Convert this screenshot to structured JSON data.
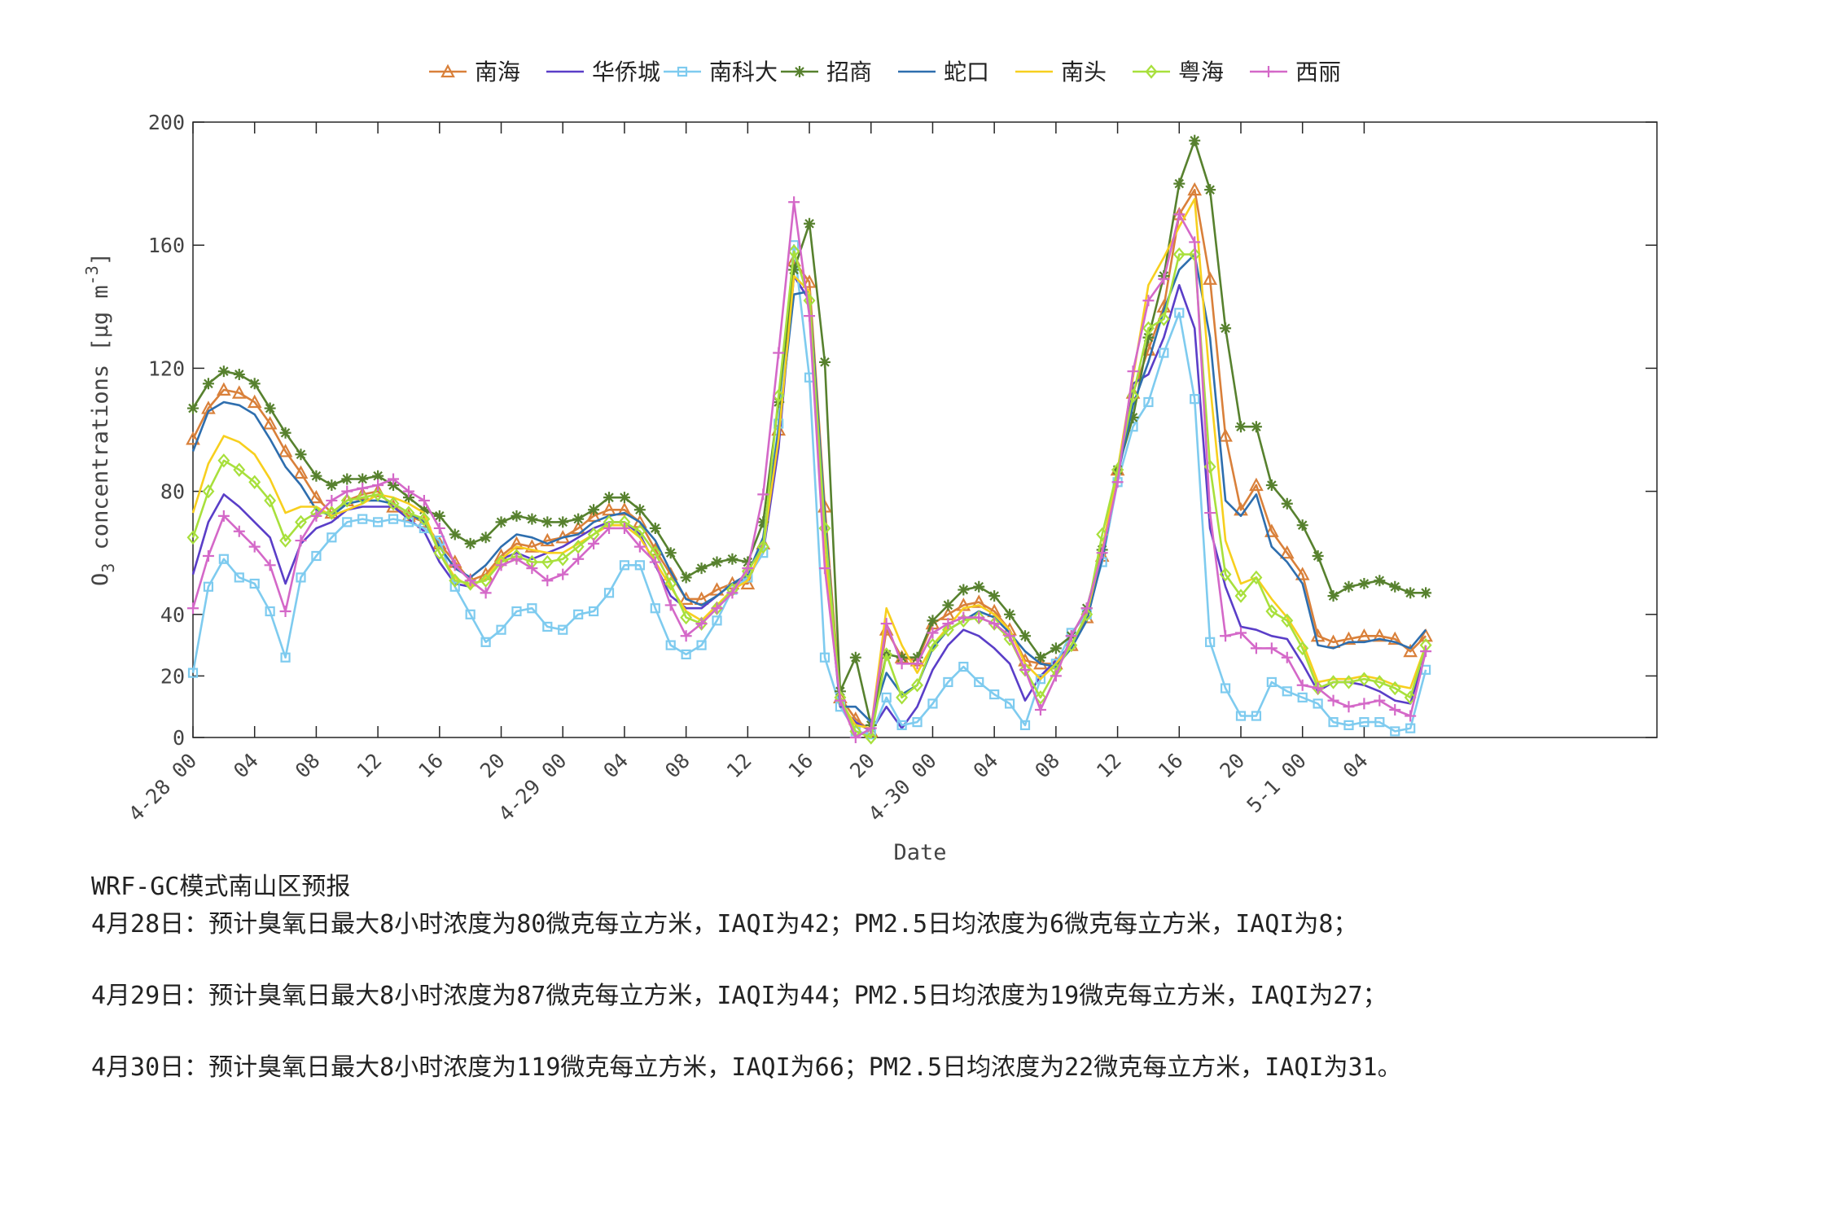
{
  "chart_data": {
    "type": "line",
    "title": "",
    "xlabel": "Date",
    "ylabel": "O3 concentrations [μg m-3]",
    "ylim": [
      0,
      200
    ],
    "yticks": [
      0,
      20,
      40,
      80,
      120,
      160,
      200
    ],
    "x_unit": "hours since 4-28 00",
    "xlim": [
      0,
      95
    ],
    "xticks": [
      {
        "x": 0,
        "label": "4-28 00"
      },
      {
        "x": 4,
        "label": "04"
      },
      {
        "x": 8,
        "label": "08"
      },
      {
        "x": 12,
        "label": "12"
      },
      {
        "x": 16,
        "label": "16"
      },
      {
        "x": 20,
        "label": "20"
      },
      {
        "x": 24,
        "label": "4-29 00"
      },
      {
        "x": 28,
        "label": "04"
      },
      {
        "x": 32,
        "label": "08"
      },
      {
        "x": 36,
        "label": "12"
      },
      {
        "x": 40,
        "label": "16"
      },
      {
        "x": 44,
        "label": "20"
      },
      {
        "x": 48,
        "label": "4-30 00"
      },
      {
        "x": 52,
        "label": "04"
      },
      {
        "x": 56,
        "label": "08"
      },
      {
        "x": 60,
        "label": "12"
      },
      {
        "x": 64,
        "label": "16"
      },
      {
        "x": 68,
        "label": "20"
      },
      {
        "x": 72,
        "label": "5-1 00"
      },
      {
        "x": 76,
        "label": "04"
      }
    ],
    "legend_position": "top-center",
    "series": [
      {
        "name": "南海",
        "color": "#D9803A",
        "marker": "triangle",
        "values": [
          97,
          107,
          113,
          112,
          109,
          102,
          93,
          86,
          78,
          73,
          77,
          79,
          80,
          75,
          72,
          70,
          63,
          57,
          51,
          53,
          59,
          63,
          62,
          64,
          65,
          68,
          72,
          74,
          74,
          70,
          61,
          53,
          45,
          45,
          48,
          50,
          50,
          63,
          100,
          155,
          148,
          75,
          13,
          6,
          2,
          35,
          26,
          25,
          37,
          40,
          43,
          44,
          41,
          35,
          25,
          24,
          24,
          30,
          39,
          59,
          87,
          112,
          126,
          140,
          170,
          178,
          149,
          98,
          74,
          82,
          67,
          60,
          53,
          33,
          31,
          32,
          33,
          33,
          32,
          28,
          33
        ]
      },
      {
        "name": "华侨城",
        "color": "#5A3EC8",
        "marker": "none",
        "values": [
          53,
          70,
          79,
          75,
          70,
          65,
          50,
          63,
          68,
          70,
          74,
          75,
          75,
          75,
          71,
          67,
          57,
          50,
          49,
          52,
          58,
          60,
          58,
          60,
          62,
          65,
          68,
          70,
          70,
          66,
          56,
          46,
          42,
          42,
          46,
          50,
          52,
          60,
          94,
          150,
          142,
          60,
          10,
          5,
          2,
          10,
          3,
          10,
          22,
          30,
          35,
          33,
          29,
          24,
          12,
          20,
          25,
          30,
          40,
          60,
          85,
          115,
          118,
          130,
          147,
          133,
          68,
          49,
          36,
          35,
          33,
          32,
          24,
          15,
          18,
          18,
          17,
          15,
          12,
          11,
          28
        ]
      },
      {
        "name": "南科大",
        "color": "#7ECBEF",
        "marker": "square",
        "values": [
          21,
          49,
          58,
          52,
          50,
          41,
          26,
          52,
          59,
          65,
          70,
          71,
          70,
          71,
          70,
          68,
          64,
          49,
          40,
          31,
          35,
          41,
          42,
          36,
          35,
          40,
          41,
          47,
          56,
          56,
          42,
          30,
          27,
          30,
          38,
          48,
          52,
          60,
          102,
          160,
          117,
          26,
          10,
          2,
          1,
          13,
          4,
          5,
          11,
          18,
          23,
          18,
          14,
          11,
          4,
          19,
          24,
          34,
          40,
          57,
          83,
          101,
          109,
          125,
          138,
          110,
          31,
          16,
          7,
          7,
          18,
          15,
          13,
          11,
          5,
          4,
          5,
          5,
          2,
          3,
          22
        ]
      },
      {
        "name": "招商",
        "color": "#57812E",
        "marker": "star",
        "values": [
          107,
          115,
          119,
          118,
          115,
          107,
          99,
          92,
          85,
          82,
          84,
          84,
          85,
          82,
          78,
          74,
          72,
          66,
          63,
          65,
          70,
          72,
          71,
          70,
          70,
          71,
          74,
          78,
          78,
          74,
          68,
          60,
          52,
          55,
          57,
          58,
          57,
          70,
          109,
          152,
          167,
          122,
          15,
          26,
          4,
          27,
          26,
          26,
          38,
          43,
          48,
          49,
          46,
          40,
          33,
          26,
          29,
          33,
          42,
          61,
          87,
          104,
          130,
          150,
          180,
          194,
          178,
          133,
          101,
          101,
          82,
          76,
          69,
          59,
          46,
          49,
          50,
          51,
          49,
          47,
          47
        ]
      },
      {
        "name": "蛇口",
        "color": "#2E6EAE",
        "marker": "none",
        "values": [
          93,
          106,
          109,
          108,
          105,
          97,
          88,
          82,
          74,
          72,
          76,
          77,
          77,
          76,
          73,
          70,
          62,
          55,
          52,
          56,
          62,
          66,
          65,
          63,
          65,
          66,
          70,
          72,
          73,
          70,
          64,
          54,
          45,
          43,
          46,
          50,
          53,
          65,
          100,
          144,
          145,
          72,
          10,
          10,
          5,
          21,
          14,
          17,
          29,
          35,
          38,
          41,
          39,
          34,
          28,
          24,
          23,
          29,
          38,
          58,
          85,
          108,
          122,
          139,
          152,
          157,
          130,
          77,
          72,
          79,
          62,
          57,
          50,
          30,
          29,
          31,
          31,
          32,
          31,
          29,
          35
        ]
      },
      {
        "name": "南头",
        "color": "#F7CF1E",
        "marker": "none",
        "values": [
          73,
          89,
          98,
          96,
          92,
          84,
          73,
          75,
          75,
          72,
          74,
          76,
          79,
          78,
          76,
          73,
          60,
          52,
          49,
          52,
          58,
          62,
          61,
          60,
          60,
          63,
          66,
          69,
          69,
          65,
          57,
          49,
          41,
          38,
          43,
          48,
          51,
          62,
          97,
          150,
          145,
          60,
          12,
          4,
          3,
          42,
          30,
          21,
          30,
          36,
          42,
          43,
          40,
          35,
          24,
          19,
          24,
          30,
          40,
          61,
          87,
          117,
          147,
          156,
          166,
          175,
          115,
          64,
          50,
          52,
          45,
          39,
          31,
          18,
          19,
          19,
          20,
          19,
          17,
          16,
          30
        ]
      },
      {
        "name": "粤海",
        "color": "#A8E03C",
        "marker": "diamond",
        "values": [
          65,
          80,
          90,
          87,
          83,
          77,
          64,
          70,
          73,
          73,
          77,
          78,
          79,
          76,
          73,
          71,
          60,
          51,
          50,
          51,
          57,
          59,
          57,
          57,
          58,
          62,
          66,
          70,
          70,
          67,
          60,
          50,
          39,
          37,
          42,
          48,
          54,
          62,
          111,
          158,
          142,
          68,
          13,
          2,
          0,
          27,
          13,
          17,
          30,
          35,
          38,
          39,
          37,
          32,
          22,
          13,
          22,
          30,
          40,
          66,
          87,
          111,
          133,
          136,
          157,
          157,
          88,
          53,
          46,
          52,
          41,
          38,
          29,
          16,
          18,
          18,
          19,
          18,
          16,
          13,
          30
        ]
      },
      {
        "name": "西丽",
        "color": "#D468C8",
        "marker": "plus",
        "values": [
          42,
          59,
          72,
          67,
          62,
          56,
          41,
          64,
          72,
          77,
          80,
          81,
          82,
          84,
          80,
          77,
          68,
          56,
          51,
          47,
          56,
          58,
          55,
          51,
          53,
          58,
          63,
          68,
          68,
          62,
          57,
          43,
          33,
          37,
          42,
          47,
          55,
          79,
          125,
          174,
          137,
          55,
          12,
          0,
          3,
          37,
          24,
          24,
          34,
          37,
          39,
          39,
          37,
          33,
          22,
          9,
          20,
          33,
          42,
          60,
          83,
          119,
          142,
          149,
          170,
          161,
          73,
          33,
          34,
          29,
          29,
          26,
          17,
          16,
          12,
          10,
          11,
          12,
          9,
          7,
          28
        ]
      }
    ]
  },
  "forecast": {
    "title": "WRF-GC模式南山区预报",
    "lines": [
      "4月28日：预计臭氧日最大8小时浓度为80微克每立方米，IAQI为42；PM2.5日均浓度为6微克每立方米，IAQI为8；",
      "4月29日：预计臭氧日最大8小时浓度为87微克每立方米，IAQI为44；PM2.5日均浓度为19微克每立方米，IAQI为27；",
      "4月30日：预计臭氧日最大8小时浓度为119微克每立方米，IAQI为66；PM2.5日均浓度为22微克每立方米，IAQI为31。"
    ]
  }
}
